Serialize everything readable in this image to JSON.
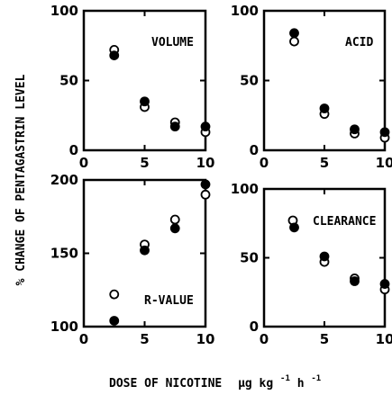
{
  "chart_data": [
    {
      "type": "scatter",
      "panel_label": "VOLUME",
      "xlim": [
        0,
        10
      ],
      "ylim": [
        0,
        100
      ],
      "xticks": [
        0,
        5,
        10
      ],
      "yticks": [
        0,
        50,
        100
      ],
      "series": [
        {
          "marker": "open-circle",
          "x": [
            2.5,
            5,
            7.5,
            10
          ],
          "y": [
            72,
            31,
            20,
            13
          ]
        },
        {
          "marker": "filled-circle",
          "x": [
            2.5,
            5,
            7.5,
            10
          ],
          "y": [
            68,
            35,
            17,
            17
          ]
        }
      ]
    },
    {
      "type": "scatter",
      "panel_label": "ACID",
      "xlim": [
        0,
        10
      ],
      "ylim": [
        0,
        100
      ],
      "xticks": [
        0,
        5,
        10
      ],
      "yticks": [
        0,
        50,
        100
      ],
      "series": [
        {
          "marker": "open-circle",
          "x": [
            2.5,
            5,
            7.5,
            10
          ],
          "y": [
            78,
            26,
            12,
            9
          ]
        },
        {
          "marker": "filled-circle",
          "x": [
            2.5,
            5,
            7.5,
            10
          ],
          "y": [
            84,
            30,
            15,
            13
          ]
        }
      ]
    },
    {
      "type": "scatter",
      "panel_label": "R-VALUE",
      "xlim": [
        0,
        10
      ],
      "ylim": [
        100,
        200
      ],
      "xticks": [
        0,
        5,
        10
      ],
      "yticks": [
        100,
        150,
        200
      ],
      "series": [
        {
          "marker": "open-circle",
          "x": [
            2.5,
            5,
            7.5,
            10
          ],
          "y": [
            122,
            156,
            173,
            190
          ]
        },
        {
          "marker": "filled-circle",
          "x": [
            2.5,
            5,
            7.5,
            10
          ],
          "y": [
            104,
            152,
            167,
            197
          ]
        }
      ]
    },
    {
      "type": "scatter",
      "panel_label": "CLEARANCE",
      "xlim": [
        0,
        10
      ],
      "ylim": [
        0,
        100
      ],
      "xticks": [
        0,
        5,
        10
      ],
      "yticks": [
        0,
        50,
        100
      ],
      "legend_marker": "open-circle",
      "series": [
        {
          "marker": "open-circle",
          "x": [
            5,
            7.5,
            10
          ],
          "y": [
            47,
            35,
            27
          ]
        },
        {
          "marker": "filled-circle",
          "x": [
            2.5,
            5,
            7.5,
            10
          ],
          "y": [
            72,
            51,
            33,
            31
          ]
        }
      ]
    }
  ],
  "ylabel": "% CHANGE OF PENTAGASTRIN LEVEL",
  "xlabel": {
    "text": "DOSE OF NICOTINE",
    "unit_base": "µg kg",
    "unit_exp1": "-1",
    "unit_h": "h",
    "unit_exp2": "-1"
  }
}
